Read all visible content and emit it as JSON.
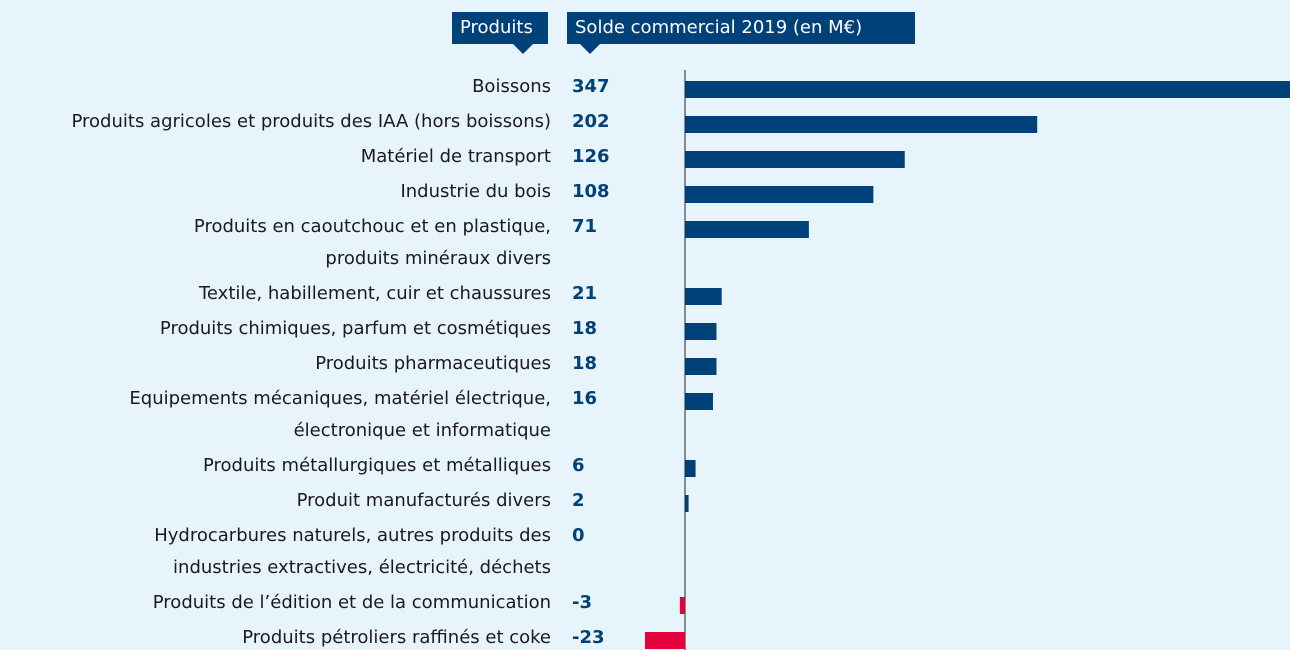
{
  "chart_data": {
    "type": "bar",
    "orientation": "horizontal",
    "category_label": "Produits",
    "title": "Solde commercial 2019 (en M€)",
    "categories": [
      "Boissons",
      "Produits agricoles et produits des IAA (hors boissons)",
      "Matériel de transport",
      "Industrie du bois",
      "Produits en caoutchouc et en plastique,\nproduits minéraux divers",
      "Textile, habillement, cuir et chaussures",
      "Produits chimiques, parfum et cosmétiques",
      "Produits pharmaceutiques",
      "Equipements mécaniques, matériel électrique,\nélectronique et informatique",
      "Produits métallurgiques et métalliques",
      "Produit manufacturés divers",
      "Hydrocarbures naturels, autres produits des\nindustries extractives, électricité, déchets",
      "Produits de l’édition et de la communication",
      "Produits pétroliers raffinés et coke"
    ],
    "values": [
      347,
      202,
      126,
      108,
      71,
      21,
      18,
      18,
      16,
      6,
      2,
      0,
      -3,
      -23
    ],
    "color": "#004179",
    "negative_color": "#e4003b",
    "xlim": [
      -23,
      347
    ]
  }
}
